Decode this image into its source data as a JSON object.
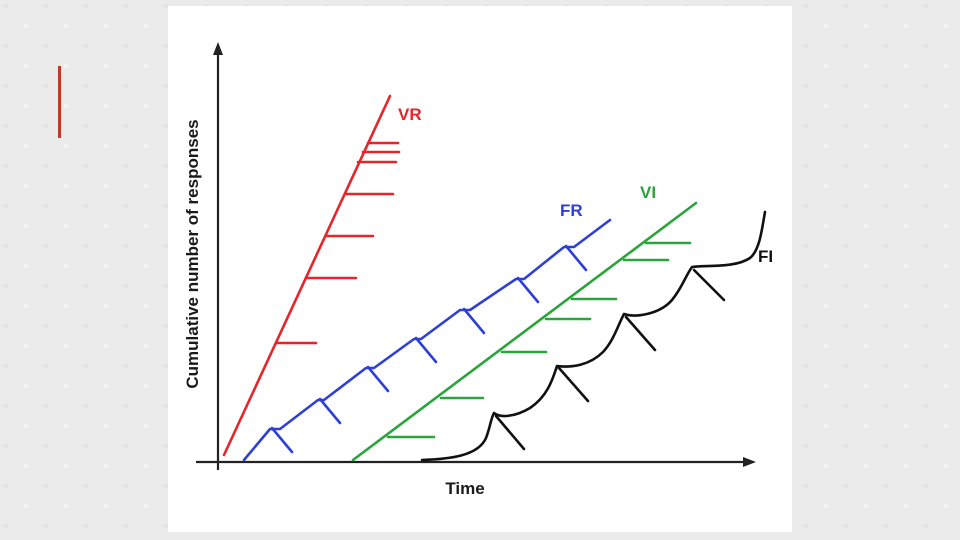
{
  "slide": {
    "accent_color": "#c0392b"
  },
  "diagram": {
    "x_axis_label": "Time",
    "y_axis_label": "Cumulative number of responses",
    "curves": [
      {
        "id": "vr",
        "label": "VR",
        "color": "#e8242b"
      },
      {
        "id": "fr",
        "label": "FR",
        "color": "#2f3fd6"
      },
      {
        "id": "vi",
        "label": "VI",
        "color": "#2aa43c"
      },
      {
        "id": "fi",
        "label": "FI",
        "color": "#111111"
      }
    ]
  }
}
